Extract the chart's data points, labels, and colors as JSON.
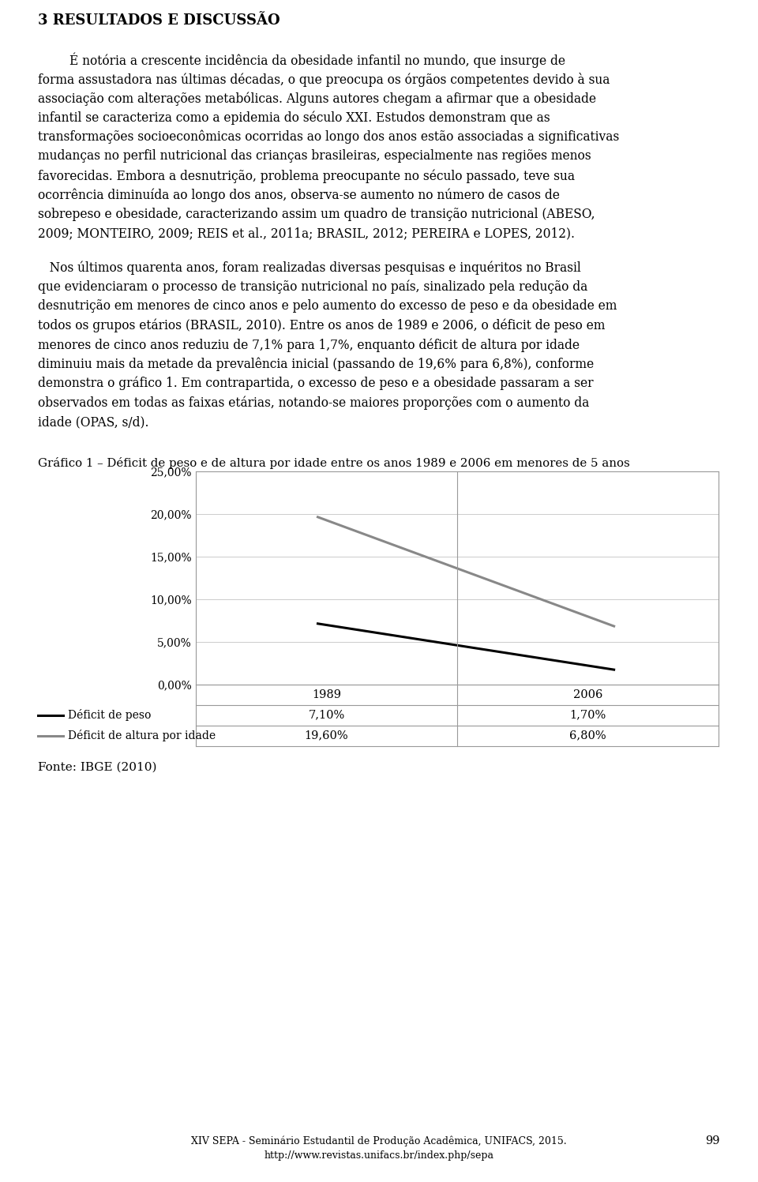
{
  "page_title": "3 RESULTADOS E DISCUSSÃO",
  "para1_indent": "   ",
  "para1_lines": [
    "É notória a crescente incidência da obesidade infantil no mundo, que insurge de",
    "forma assustadora nas últimas décadas, o que preocupa os órgãos competentes devido à sua",
    "associação com alterações metabólicas. Alguns autores chegam a afirmar que a obesidade",
    "infantil se caracteriza como a epidemia do século XXI. Estudos demonstram que as",
    "transformações socioeconômicas ocorridas ao longo dos anos estão associadas a significativas",
    "mudanças no perfil nutricional das crianças brasileiras, especialmente nas regiões menos",
    "favorecidas. Embora a desnutrição, problema preocupante no século passado, teve sua",
    "ocorrência diminuída ao longo dos anos, observa-se aumento no número de casos de",
    "sobrepeso e obesidade, caracterizando assim um quadro de transição nutricional (ABESO,",
    "2009; MONTEIRO, 2009; REIS et al., 2011a; BRASIL, 2012; PEREIRA e LOPES, 2012)."
  ],
  "para2_lines": [
    "   Nos últimos quarenta anos, foram realizadas diversas pesquisas e inquéritos no Brasil",
    "que evidenciaram o processo de transição nutricional no país, sinalizado pela redução da",
    "desnutrição em menores de cinco anos e pelo aumento do excesso de peso e da obesidade em",
    "todos os grupos etários (BRASIL, 2010). Entre os anos de 1989 e 2006, o déficit de peso em",
    "menores de cinco anos reduziu de 7,1% para 1,7%, enquanto déficit de altura por idade",
    "diminuiu mais da metade da prevalência inicial (passando de 19,6% para 6,8%), conforme",
    "demonstra o gráfico 1. Em contrapartida, o excesso de peso e a obesidade passaram a ser",
    "observados em todas as faixas etárias, notando-se maiores proporções com o aumento da",
    "idade (OPAS, s/d)."
  ],
  "chart_title": "Gráfico 1 – Déficit de peso e de altura por idade entre os anos 1989 e 2006 em menores de 5 anos",
  "years": [
    1989,
    2006
  ],
  "deficit_peso": [
    7.1,
    1.7
  ],
  "deficit_altura": [
    19.6,
    6.8
  ],
  "ytick_labels": [
    "0,00%",
    "5,00%",
    "10,00%",
    "15,00%",
    "20,00%",
    "25,00%"
  ],
  "ytick_values": [
    0,
    5,
    10,
    15,
    20,
    25
  ],
  "line1_color": "#000000",
  "line2_color": "#888888",
  "line1_label": "Déficit de peso",
  "line2_label": "Déficit de altura por idade",
  "table_years": [
    "1989",
    "2006"
  ],
  "table_row1_vals": [
    "7,10%",
    "1,70%"
  ],
  "table_row2_vals": [
    "19,60%",
    "6,80%"
  ],
  "source_text": "Fonte: IBGE (2010)",
  "footer_text": "XIV SEPA - Seminário Estudantil de Produção Acadêmica, UNIFACS, 2015.",
  "footer_url": "http://www.revistas.unifacs.br/index.php/sepa",
  "page_number": "99",
  "background_color": "#ffffff",
  "text_color": "#000000",
  "grid_color": "#cccccc",
  "border_color": "#999999"
}
